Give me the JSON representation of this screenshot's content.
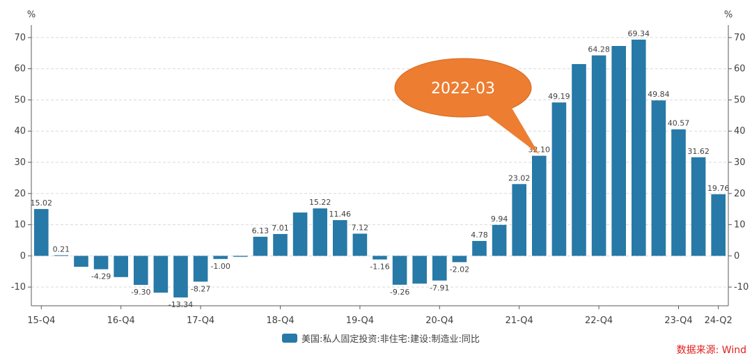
{
  "chart_data": {
    "type": "bar",
    "unit_left": "%",
    "unit_right": "%",
    "ylim": [
      -16,
      74
    ],
    "yticks": [
      -10,
      0,
      10,
      20,
      30,
      40,
      50,
      60,
      70
    ],
    "x_tick_labels": [
      "15-Q4",
      "16-Q4",
      "17-Q4",
      "18-Q4",
      "19-Q4",
      "20-Q4",
      "21-Q4",
      "22-Q4",
      "23-Q4",
      "24-Q2"
    ],
    "x_tick_indices": [
      0,
      4,
      8,
      12,
      16,
      20,
      24,
      28,
      32,
      34
    ],
    "series": [
      {
        "name": "美国:私人固定投资:非住宅:建设:制造业:同比",
        "color": "#2779a7",
        "values": [
          15.02,
          0.21,
          -3.5,
          -4.29,
          -6.8,
          -9.3,
          -11.8,
          -13.34,
          -8.27,
          -1.0,
          -0.3,
          6.13,
          7.01,
          13.9,
          15.22,
          11.46,
          7.12,
          -1.16,
          -9.26,
          -8.9,
          -7.91,
          -2.02,
          4.78,
          9.94,
          23.02,
          32.1,
          49.19,
          61.5,
          64.28,
          67.3,
          69.34,
          49.84,
          40.57,
          31.62,
          19.76
        ],
        "labels": [
          "15.02",
          "0.21",
          "",
          "-4.29",
          "",
          "-9.30",
          "",
          "-13.34",
          "-8.27",
          "-1.00",
          "",
          "6.13",
          "7.01",
          "",
          "15.22",
          "11.46",
          "7.12",
          "-1.16",
          "-9.26",
          "",
          "-7.91",
          "-2.02",
          "4.78",
          "9.94",
          "23.02",
          "32.10",
          "49.19",
          "",
          "64.28",
          "",
          "69.34",
          "49.84",
          "40.57",
          "31.62",
          "19.76"
        ]
      }
    ],
    "annotation": {
      "text": "2022-03",
      "target_index": 25,
      "color": "#ed7d31"
    }
  },
  "legend": {
    "label": "美国:私人固定投资:非住宅:建设:制造业:同比"
  },
  "source": {
    "text": "数据来源: Wind",
    "color": "#e0201c"
  }
}
